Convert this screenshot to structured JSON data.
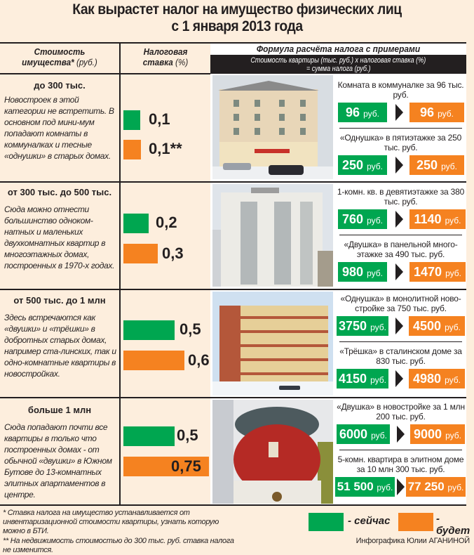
{
  "title": {
    "line1": "Как вырастет налог на имущество физических лиц",
    "line2": "с 1 января 2013 года"
  },
  "header": {
    "col1_line1": "Стоимость",
    "col1_line2": "имущества",
    "col1_star": "*",
    "col1_unit": "(руб.)",
    "col2_line1": "Налоговая",
    "col2_line2": "ставка",
    "col2_unit": "(%)",
    "col3_title": "Формула расчёта налога с примерами",
    "formula_line1": "Стоимость квартиры (тыс. руб.) x налоговая ставка (%)",
    "formula_line2": "= сумма налога (руб.)"
  },
  "colors": {
    "now": "#00a650",
    "future": "#f58220",
    "background": "#fdeedd"
  },
  "rows": [
    {
      "category": "до 300 тыс.",
      "description": "Новострoек в этой категории не встретить. В основном под мини-мум попадают комнаты в коммуналках и тесные «однушки» в старых домах.",
      "rate_now": "0,1",
      "rate_future": "0,1**",
      "rate_now_value": 0.1,
      "rate_future_value": 0.1,
      "examples": [
        {
          "label": "Комната в коммуналке за 96 тыс. руб.",
          "now": "96",
          "future": "96"
        },
        {
          "label": "«Однушка» в пятиэтажке за 250 тыс. руб.",
          "now": "250",
          "future": "250"
        }
      ]
    },
    {
      "category": "от 300 тыс. до 500 тыс.",
      "description": "Сюда можно отнести большинство одноком-натных и маленьких двухкомнатных квартир в многоэтажных домах, построенных в 1970-х годах.",
      "rate_now": "0,2",
      "rate_future": "0,3",
      "rate_now_value": 0.2,
      "rate_future_value": 0.3,
      "examples": [
        {
          "label": "1-комн. кв. в девятиэтажке за 380 тыс. руб.",
          "now": "760",
          "future": "1140"
        },
        {
          "label": "«Двушка» в панельной много-этажке за 490 тыс. руб.",
          "now": "980",
          "future": "1470"
        }
      ]
    },
    {
      "category": "от 500 тыс. до 1 млн",
      "description": "Здесь встречаются как «двушки» и «трёшки» в добротных старых домах, например ста-линских, так и одно-комнатные квартиры в новостройках.",
      "rate_now": "0,5",
      "rate_future": "0,6",
      "rate_now_value": 0.5,
      "rate_future_value": 0.6,
      "examples": [
        {
          "label": "«Однушка» в монолитной ново-стройке за 750 тыс. руб.",
          "now": "3750",
          "future": "4500"
        },
        {
          "label": "«Трёшка» в сталинском доме за 830 тыс. руб.",
          "now": "4150",
          "future": "4980"
        }
      ]
    },
    {
      "category": "больше 1 млн",
      "description": "Сюда попадают почти все квартиры в только что построенных домах - от обычной «двушки» в Южном Бутове до 13-комнатных элитных апартаментов в центре.",
      "rate_now": "0,5",
      "rate_future": "0,75",
      "rate_now_value": 0.5,
      "rate_future_value": 0.75,
      "examples": [
        {
          "label": "«Двушка» в новостройке за 1 млн 200 тыс. руб.",
          "now": "6000",
          "future": "9000"
        },
        {
          "label": "5-комн. квартира в элитном доме за 10 млн 300 тыс. руб.",
          "now": "51 500",
          "future": "77 250"
        }
      ]
    }
  ],
  "currency": "руб.",
  "footer": {
    "note1": "* Ставка налога на имущество устанавливается от инвентаризационной стоимости квартиры, узнать которую можно в БТИ.",
    "note2": "** На недвижимость стоимостью до 300 тыс. руб. ставка налога не изменится.",
    "legend_now": "- сейчас",
    "legend_future": "- будет",
    "credit": "Инфографика Юлии АГАНИНОЙ"
  }
}
